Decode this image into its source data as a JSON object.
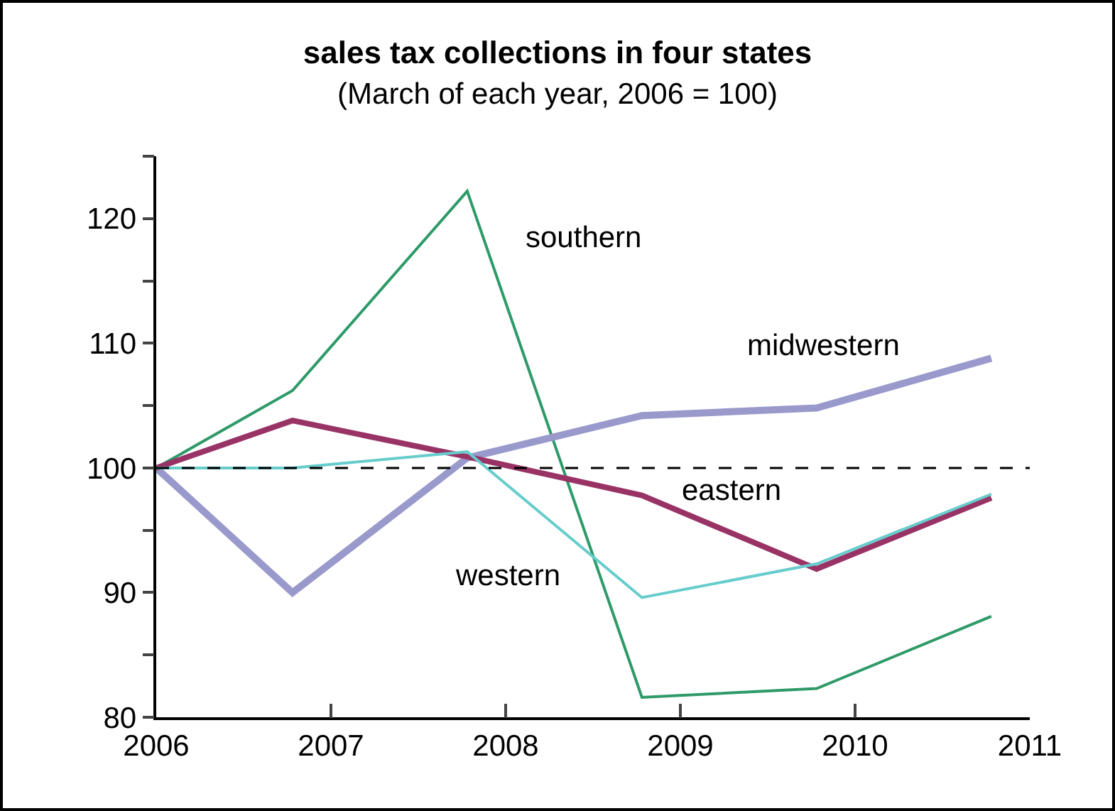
{
  "chart_data": {
    "type": "line",
    "title": "sales tax collections in four states",
    "subtitle": "(March of each year, 2006 = 100)",
    "x": [
      2006,
      2006.78,
      2007.78,
      2008.78,
      2009.78,
      2010.78
    ],
    "series": [
      {
        "name": "southern",
        "color": "#2e9a68",
        "values": [
          100,
          106.2,
          122.2,
          81.6,
          82.3,
          88.1
        ]
      },
      {
        "name": "midwestern",
        "color": "#9999cc",
        "values": [
          100,
          90,
          100.8,
          104.2,
          104.8,
          108.8
        ]
      },
      {
        "name": "eastern",
        "color": "#993366",
        "values": [
          100,
          103.8,
          100.9,
          97.8,
          91.9,
          97.6
        ]
      },
      {
        "name": "western",
        "color": "#66cccc",
        "values": [
          100,
          100,
          101.3,
          89.6,
          92.3,
          97.9
        ]
      }
    ],
    "xlim": [
      2006,
      2011
    ],
    "xticks": [
      2006,
      2007,
      2008,
      2009,
      2010,
      2011
    ],
    "ylim": [
      80,
      125
    ],
    "yticks": [
      80,
      {
        "value": 85,
        "label": null
      },
      90,
      {
        "value": 95,
        "label": null
      },
      100,
      {
        "value": 105,
        "label": null
      },
      110,
      {
        "value": 115,
        "label": null
      },
      120,
      {
        "value": 125,
        "label": null
      }
    ],
    "ref_lines": [
      {
        "axis": "y",
        "value": 100,
        "color": "#000000",
        "line_style": "dashed"
      }
    ],
    "grid": false,
    "legend": false,
    "marker": "none",
    "line_style": "solid"
  }
}
